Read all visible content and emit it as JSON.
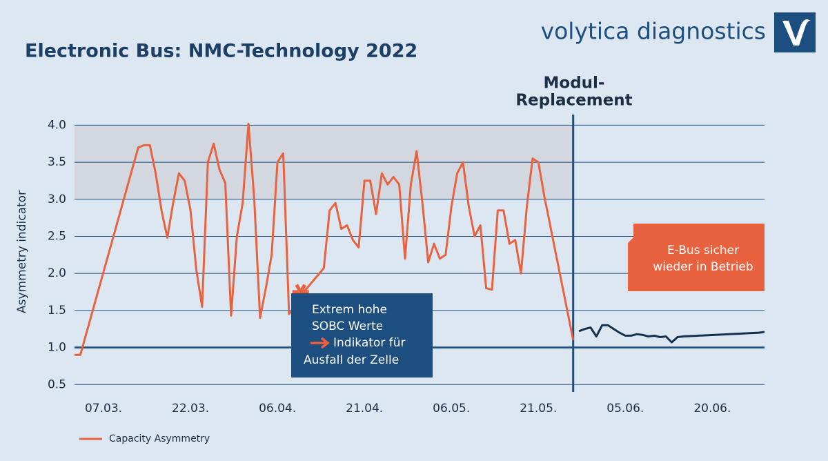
{
  "chart_data": {
    "type": "line",
    "title": "Electronic Bus: NMC-Technology 2022",
    "brand": "volytica diagnostics",
    "y_label": "Asymmetry indicator",
    "xlim": [
      "02.03.",
      "29.06."
    ],
    "xticks": [
      "07.03.",
      "22.03.",
      "06.04.",
      "21.04.",
      "06.05.",
      "21.05.",
      "05.06.",
      "20.06."
    ],
    "ylim": [
      0.4,
      4.05
    ],
    "yticks": [
      {
        "value": 0.5,
        "label": "0.5"
      },
      {
        "value": 1,
        "label": "1.0"
      },
      {
        "value": 1.5,
        "label": "1.5"
      },
      {
        "value": 2,
        "label": "2.0"
      },
      {
        "value": 2.5,
        "label": "2.5"
      },
      {
        "value": 3,
        "label": "3.0"
      },
      {
        "value": 3.5,
        "label": "3.5"
      },
      {
        "value": 4,
        "label": "4.0"
      }
    ],
    "grid": true,
    "grid_color": "#1c4f80",
    "reference_y": 1,
    "shaded_range": [
      3,
      4
    ],
    "shaded_color": "#d3d8e0",
    "x": [
      "02.03.",
      "03.03.",
      "13.03.",
      "14.03.",
      "15.03.",
      "16.03.",
      "17.03.",
      "18.03.",
      "19.03.",
      "20.03.",
      "21.03.",
      "22.03.",
      "23.03.",
      "24.03.",
      "25.03.",
      "26.03.",
      "27.03.",
      "28.03.",
      "29.03.",
      "30.03.",
      "31.03.",
      "01.04.",
      "02.04.",
      "03.04.",
      "04.04.",
      "05.04.",
      "06.04.",
      "07.04.",
      "08.04.",
      "09.04.",
      "10.04.",
      "14.04.",
      "15.04.",
      "16.04.",
      "17.04.",
      "18.04.",
      "19.04.",
      "20.04.",
      "21.04.",
      "22.04.",
      "23.04.",
      "24.04.",
      "25.04.",
      "26.04.",
      "27.04.",
      "28.04.",
      "29.04.",
      "30.04.",
      "01.05.",
      "02.05.",
      "03.05.",
      "04.05.",
      "05.05.",
      "06.05.",
      "07.05.",
      "08.05.",
      "09.05.",
      "10.05.",
      "11.05.",
      "12.05.",
      "13.05.",
      "14.05.",
      "15.05.",
      "16.05.",
      "17.05.",
      "18.05.",
      "19.05.",
      "20.05.",
      "21.05.",
      "22.05.",
      "27.05.",
      "28.05.",
      "29.05.",
      "30.05.",
      "31.05.",
      "01.06.",
      "02.06.",
      "03.06.",
      "04.06.",
      "05.06.",
      "06.06.",
      "07.06.",
      "08.06.",
      "09.06.",
      "10.06.",
      "11.06.",
      "12.06.",
      "13.06.",
      "14.06.",
      "15.06.",
      "28.06.",
      "29.06."
    ],
    "series": [
      {
        "name": "Capacity Asymmetry",
        "color": "#e8623f",
        "values": [
          0.9,
          0.9,
          3.7,
          3.73,
          3.73,
          3.35,
          2.85,
          2.48,
          2.95,
          3.35,
          3.25,
          2.85,
          2.05,
          1.55,
          3.5,
          3.75,
          3.4,
          3.22,
          1.43,
          2.5,
          2.95,
          4.02,
          3.0,
          1.4,
          1.8,
          2.25,
          3.5,
          3.62,
          1.45,
          1.55,
          1.7,
          2.07,
          2.85,
          2.95,
          2.6,
          2.65,
          2.45,
          2.35,
          3.25,
          3.25,
          2.8,
          3.35,
          3.2,
          3.3,
          3.2,
          2.2,
          3.2,
          3.65,
          2.95,
          2.15,
          2.4,
          2.2,
          2.25,
          2.9,
          3.35,
          3.5,
          2.9,
          2.5,
          2.65,
          1.8,
          1.78,
          2.85,
          2.85,
          2.4,
          2.45,
          2.0,
          2.9,
          3.55,
          3.5,
          3.05,
          1.1,
          null,
          null,
          null,
          null,
          null,
          null,
          null,
          null,
          null,
          null,
          null,
          null,
          null,
          null,
          null,
          null,
          null,
          null,
          null,
          null,
          null
        ]
      },
      {
        "color": "#14304f",
        "values": [
          null,
          null,
          null,
          null,
          null,
          null,
          null,
          null,
          null,
          null,
          null,
          null,
          null,
          null,
          null,
          null,
          null,
          null,
          null,
          null,
          null,
          null,
          null,
          null,
          null,
          null,
          null,
          null,
          null,
          null,
          null,
          null,
          null,
          null,
          null,
          null,
          null,
          null,
          null,
          null,
          null,
          null,
          null,
          null,
          null,
          null,
          null,
          null,
          null,
          null,
          null,
          null,
          null,
          null,
          null,
          null,
          null,
          null,
          null,
          null,
          null,
          null,
          null,
          null,
          null,
          null,
          null,
          null,
          null,
          null,
          null,
          1.22,
          1.25,
          1.27,
          1.15,
          1.3,
          1.3,
          1.25,
          1.2,
          1.16,
          1.16,
          1.18,
          1.17,
          1.15,
          1.16,
          1.14,
          1.15,
          1.07,
          1.14,
          1.15,
          1.2,
          1.21
        ]
      }
    ],
    "highlight_point": {
      "x": "10.04.",
      "y": 1.75,
      "color": "#e8623f"
    },
    "event": {
      "x": "27.05.",
      "color": "#1c4f80",
      "lines": [
        "Modul-",
        "Replacement"
      ]
    },
    "annotations": [
      {
        "lines": [
          "Extrem hohe",
          "SOBC Werte",
          "Indikator für",
          "Ausfall der Zelle"
        ]
      },
      {
        "lines": [
          "E-Bus sicher",
          "wieder in Betrieb"
        ]
      }
    ]
  }
}
